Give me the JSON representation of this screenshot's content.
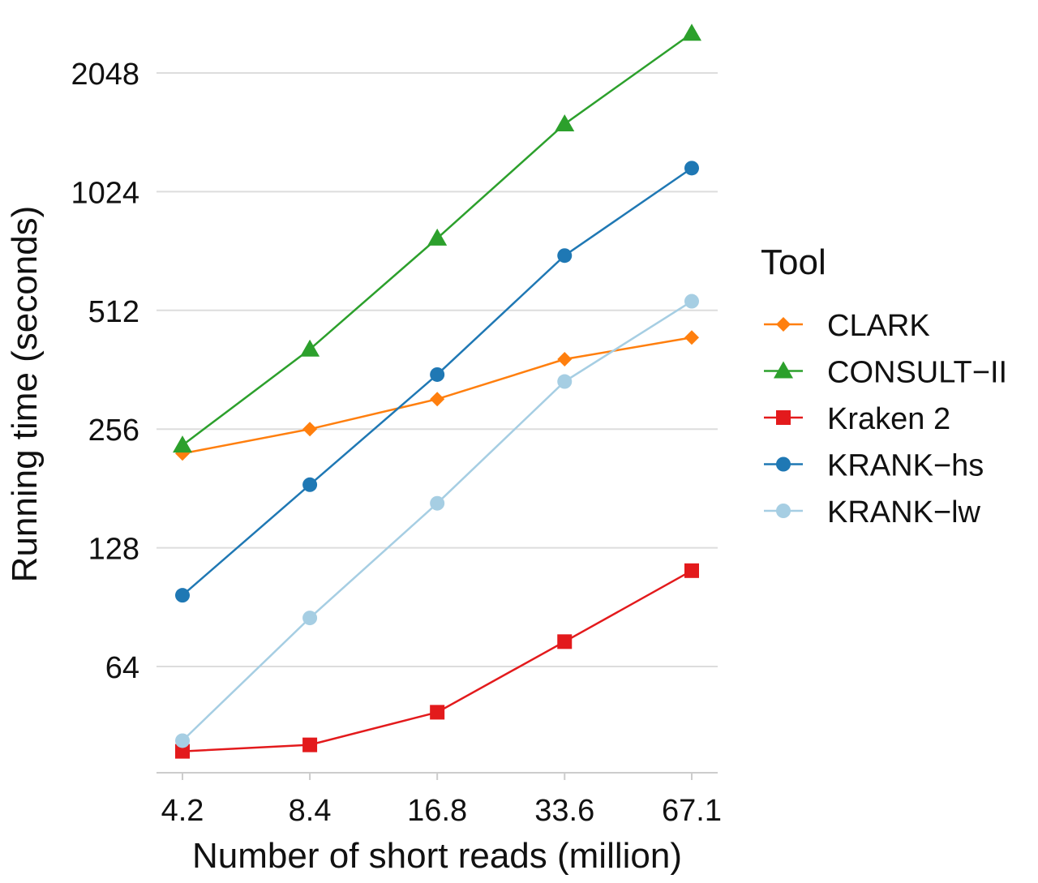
{
  "chart_data": {
    "type": "line",
    "x_scale": "log2",
    "y_scale": "log2",
    "x": [
      4.2,
      8.4,
      16.8,
      33.6,
      67.1
    ],
    "x_tick_labels": [
      "4.2",
      "8.4",
      "16.8",
      "33.6",
      "67.1"
    ],
    "y_ticks": [
      64,
      128,
      256,
      512,
      1024,
      2048
    ],
    "y_tick_labels": [
      "64",
      "128",
      "256",
      "512",
      "1024",
      "2048"
    ],
    "ylim": [
      36,
      2900
    ],
    "xlabel": "Number of short reads (million)",
    "ylabel": "Running time (seconds)",
    "grid": "horizontal",
    "legend": {
      "title": "Tool",
      "position": "right"
    },
    "series": [
      {
        "name": "CLARK",
        "color": "#ff7f0e",
        "marker": "diamond",
        "values": [
          222,
          256,
          305,
          385,
          437
        ]
      },
      {
        "name": "CONSULT−II",
        "color": "#2ca02c",
        "marker": "triangle",
        "values": [
          233,
          408,
          780,
          1520,
          2580
        ]
      },
      {
        "name": "Kraken 2",
        "color": "#e31a1c",
        "marker": "square",
        "values": [
          39,
          40.5,
          49,
          74,
          112
        ]
      },
      {
        "name": "KRANK−hs",
        "color": "#1f78b4",
        "marker": "circle",
        "values": [
          97,
          185,
          352,
          705,
          1175
        ]
      },
      {
        "name": "KRANK−lw",
        "color": "#a6cee3",
        "marker": "circle",
        "values": [
          41.5,
          85,
          166,
          338,
          540
        ]
      }
    ]
  }
}
